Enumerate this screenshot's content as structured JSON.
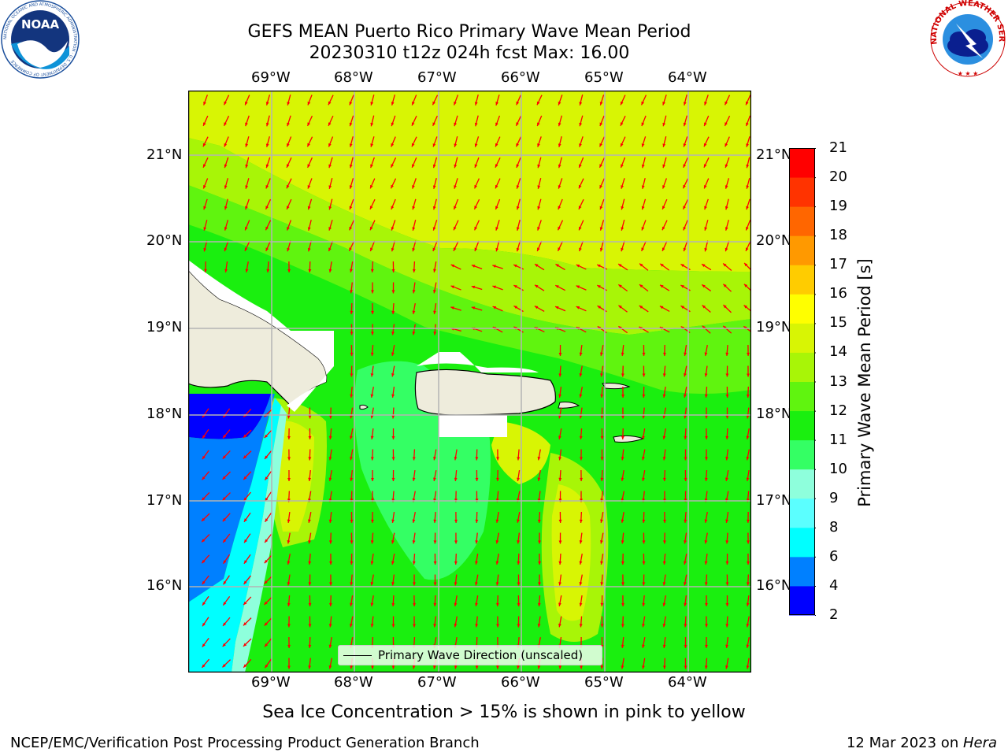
{
  "header": {
    "title_line1": "GEFS MEAN Puerto Rico Primary Wave Mean Period",
    "title_line2": "20230310 t12z 024h fcst   Max: 16.00"
  },
  "logos": {
    "noaa_text": "NOAA",
    "noaa_ring": "NATIONAL OCEANIC AND ATMOSPHERIC ADMINISTRATION · U.S. DEPARTMENT OF COMMERCE",
    "nws_ring": "NATIONAL WEATHER SERVICE"
  },
  "map": {
    "lon_labels": [
      "69°W",
      "68°W",
      "67°W",
      "66°W",
      "65°W",
      "64°W"
    ],
    "lat_labels": [
      "21°N",
      "20°N",
      "19°N",
      "18°N",
      "17°N",
      "16°N"
    ],
    "land_color": "#eeecdc",
    "arrow_color": "#ff0000",
    "grid_color": "#b4b4b4",
    "legend_label": "Primary Wave Direction (unscaled)"
  },
  "colorbar": {
    "label": "Primary Wave Mean Period [s]",
    "ticks": [
      "21",
      "20",
      "19",
      "18",
      "17",
      "16",
      "15",
      "14",
      "13",
      "12",
      "11",
      "10",
      "9",
      "8",
      "6",
      "4",
      "2"
    ],
    "colors": [
      "#0000ff",
      "#0080ff",
      "#00ffff",
      "#5bffff",
      "#8effdc",
      "#34ff64",
      "#1aef0f",
      "#60f40f",
      "#a8f507",
      "#d8f504",
      "#ffff00",
      "#ffcc00",
      "#ff9900",
      "#ff6600",
      "#ff3300",
      "#ff0000"
    ]
  },
  "note": "Sea Ice Concentration > 15% is shown in pink to yellow",
  "footer": {
    "left": "NCEP/EMC/Verification Post Processing Product Generation Branch",
    "right_date": "12 Mar 2023 on ",
    "right_host": "Hera"
  }
}
